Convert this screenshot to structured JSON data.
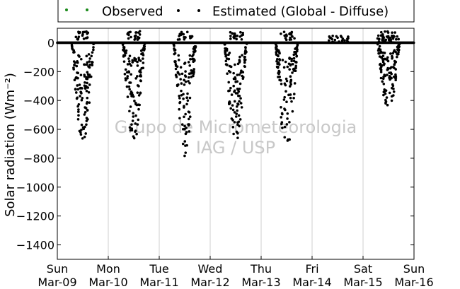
{
  "chart_data": {
    "type": "scatter",
    "ylabel": "Solar radiation (Wm⁻²)",
    "ylim": [
      -1500,
      100
    ],
    "yticks": [
      0,
      -200,
      -400,
      -600,
      -800,
      -1000,
      -1200,
      -1400
    ],
    "ytick_labels": [
      "0",
      "−200",
      "−400",
      "−600",
      "−800",
      "−1000",
      "−1200",
      "−1400"
    ],
    "xlim": [
      0,
      7
    ],
    "xticks": [
      {
        "day": 0,
        "weekday": "Sun",
        "date": "Mar-09"
      },
      {
        "day": 1,
        "weekday": "Mon",
        "date": "Mar-10"
      },
      {
        "day": 2,
        "weekday": "Tue",
        "date": "Mar-11"
      },
      {
        "day": 3,
        "weekday": "Wed",
        "date": "Mar-12"
      },
      {
        "day": 4,
        "weekday": "Thu",
        "date": "Mar-13"
      },
      {
        "day": 5,
        "weekday": "Fri",
        "date": "Mar-14"
      },
      {
        "day": 6,
        "weekday": "Sat",
        "date": "Mar-15"
      },
      {
        "day": 7,
        "weekday": "Sun",
        "date": "Mar-16"
      }
    ],
    "grid": "vertical",
    "legend_position": "top",
    "series": [
      {
        "name": "Observed",
        "color": "#1a8a1a",
        "marker": "dot",
        "values_note": "near zero, hidden under estimated line"
      },
      {
        "name": "Estimated (Global - Diffuse)",
        "color": "#000000",
        "marker": "dot",
        "daily_minimum": [
          {
            "date": "Mar-09",
            "min": -690
          },
          {
            "date": "Mar-10",
            "min": -700
          },
          {
            "date": "Mar-11",
            "min": -790
          },
          {
            "date": "Mar-12",
            "min": -710
          },
          {
            "date": "Mar-13",
            "min": -750
          },
          {
            "date": "Mar-14",
            "min": 0
          },
          {
            "date": "Mar-15",
            "min": -490
          },
          {
            "date": "Mar-16",
            "min": 0
          }
        ]
      }
    ],
    "watermark": [
      "Grupo de Micrometeorologia",
      "IAG / USP"
    ]
  }
}
